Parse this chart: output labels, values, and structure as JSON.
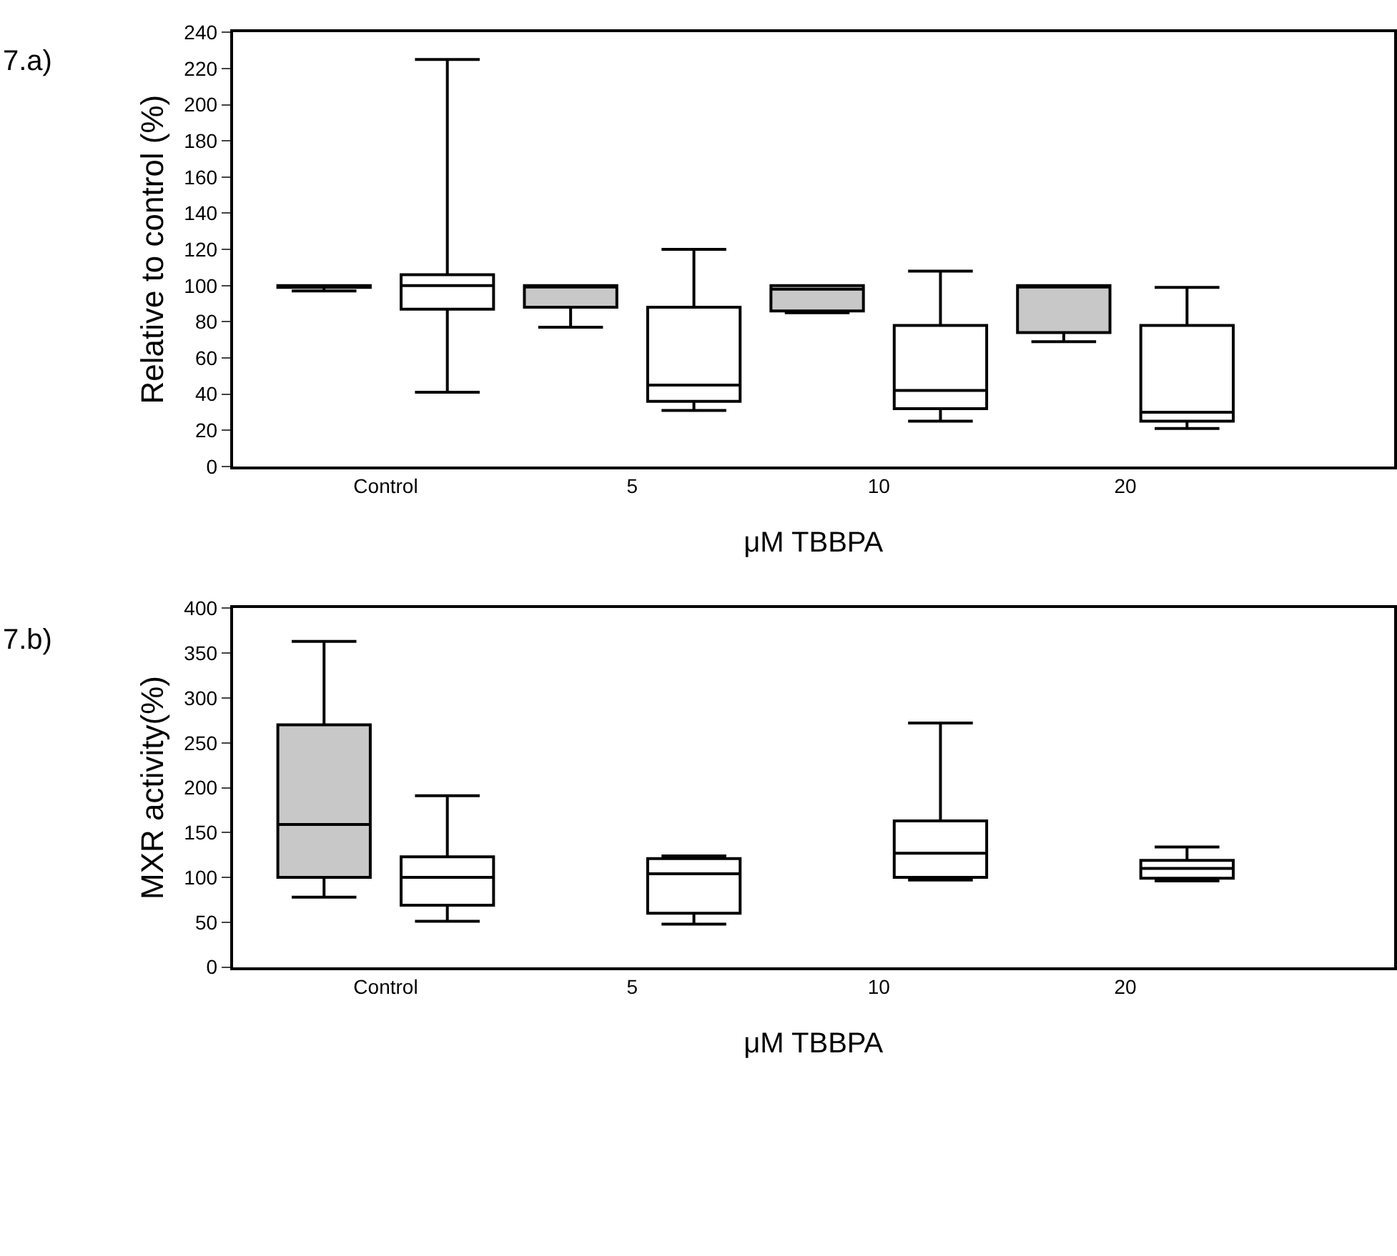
{
  "chart_data": [
    {
      "type": "box",
      "xlabel": "μM TBBPA",
      "ylabel": "Relative to control (%)",
      "annotations": [
        "7.a)"
      ],
      "categories": [
        "Control",
        "5",
        "10",
        "20"
      ],
      "ylim": [
        0,
        240
      ],
      "yticks": [
        0,
        20,
        40,
        60,
        80,
        100,
        120,
        140,
        160,
        180,
        200,
        220,
        240
      ],
      "series": [
        {
          "color": "#c8c8c8",
          "boxes": [
            {
              "low": 97,
              "q1": 99,
              "median": 100,
              "q3": 100,
              "high": 100
            },
            {
              "low": 77,
              "q1": 88,
              "median": 100,
              "q3": 100,
              "high": 100
            },
            {
              "low": 85,
              "q1": 86,
              "median": 98,
              "q3": 100,
              "high": 100
            },
            {
              "low": 69,
              "q1": 74,
              "median": 100,
              "q3": 100,
              "high": 100
            }
          ]
        },
        {
          "color": "#ffffff",
          "boxes": [
            {
              "low": 41,
              "q1": 87,
              "median": 100,
              "q3": 106,
              "high": 225
            },
            {
              "low": 31,
              "q1": 36,
              "median": 45,
              "q3": 88,
              "high": 120
            },
            {
              "low": 25,
              "q1": 32,
              "median": 42,
              "q3": 78,
              "high": 108
            },
            {
              "low": 21,
              "q1": 25,
              "median": 30,
              "q3": 78,
              "high": 99
            }
          ]
        }
      ]
    },
    {
      "type": "box",
      "xlabel": "μM TBBPA",
      "ylabel": "MXR activity(%)",
      "annotations": [
        "7.b)"
      ],
      "categories": [
        "Control",
        "5",
        "10",
        "20"
      ],
      "ylim": [
        0,
        400
      ],
      "yticks": [
        0,
        50,
        100,
        150,
        200,
        250,
        300,
        350,
        400
      ],
      "series": [
        {
          "color": "#c8c8c8",
          "boxes": [
            {
              "low": 78,
              "q1": 100,
              "median": 159,
              "q3": 270,
              "high": 363
            },
            null,
            null,
            null
          ]
        },
        {
          "color": "#ffffff",
          "boxes": [
            {
              "low": 51,
              "q1": 69,
              "median": 100,
              "q3": 123,
              "high": 191
            },
            {
              "low": 48,
              "q1": 60,
              "median": 104,
              "q3": 121,
              "high": 124
            },
            {
              "low": 97,
              "q1": 100,
              "median": 127,
              "q3": 163,
              "high": 272
            },
            {
              "low": 96,
              "q1": 99,
              "median": 110,
              "q3": 119,
              "high": 134
            }
          ]
        }
      ]
    }
  ]
}
